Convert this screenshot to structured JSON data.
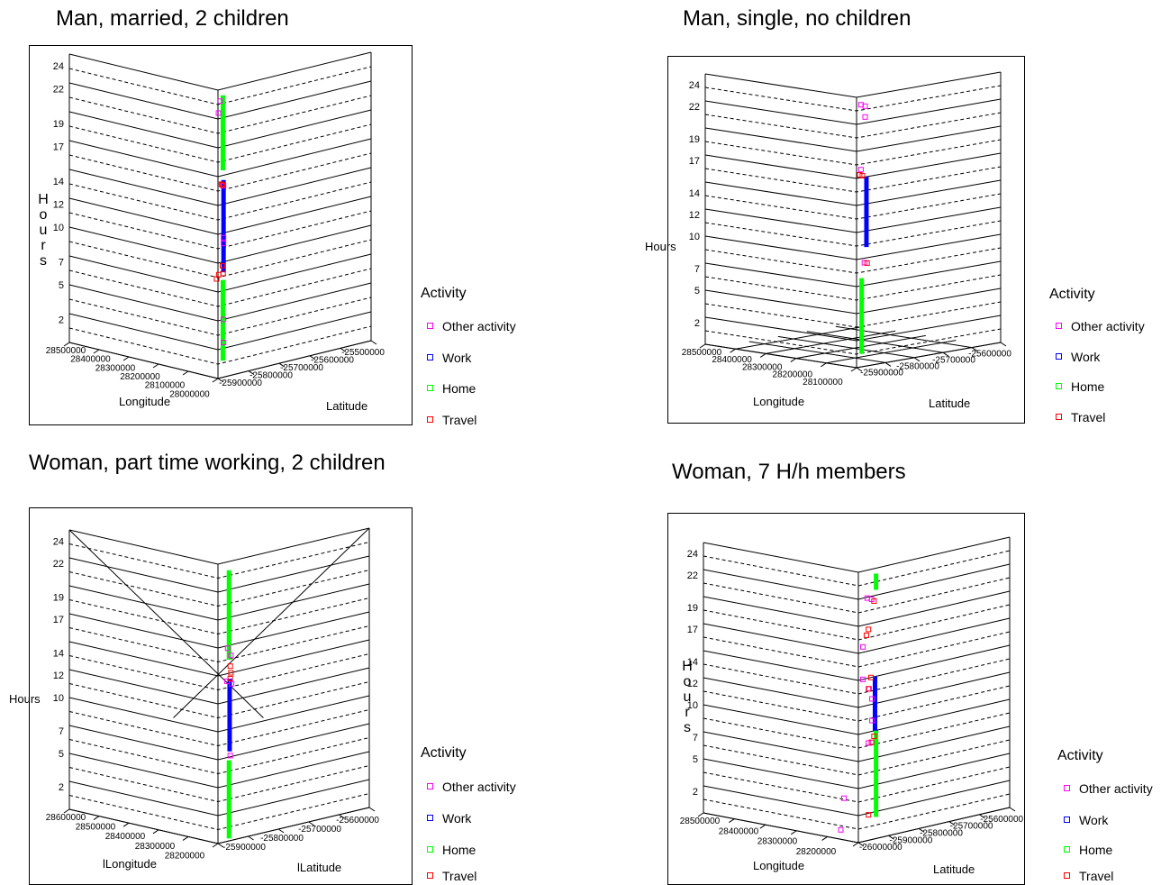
{
  "legend": {
    "title": "Activity",
    "items": [
      {
        "label": "Other activity",
        "color": "#ff00ff"
      },
      {
        "label": "Work",
        "color": "#0000ff"
      },
      {
        "label": "Home",
        "color": "#00ff00"
      },
      {
        "label": "Travel",
        "color": "#ff0000"
      }
    ]
  },
  "chart_data": [
    {
      "type": "scatter",
      "title": "Man, married, 2 children",
      "zlabel": "Hours",
      "zlabel_vertical": true,
      "xlabel": "Longitude",
      "ylabel": "Latitude",
      "z_ticks": [
        "24",
        "22",
        "19",
        "17",
        "14",
        "12",
        "10",
        "7",
        "5",
        "2"
      ],
      "x_ticks": [
        "28500000",
        "28400000",
        "28300000",
        "28200000",
        "28100000",
        "28000000"
      ],
      "y_ticks": [
        "-25900000",
        "-25800000",
        "-25700000",
        "-25600000",
        "-25500000"
      ],
      "series": [
        {
          "activity": "Home",
          "points": [
            [
              28100000,
              -25800000,
              17.5
            ],
            [
              28100000,
              -25800000,
              24
            ],
            [
              28100000,
              -25800000,
              1
            ],
            [
              28100000,
              -25800000,
              8
            ]
          ]
        },
        {
          "activity": "Work",
          "points": [
            [
              28020000,
              -25650000,
              9
            ],
            [
              28020000,
              -25650000,
              17
            ]
          ]
        },
        {
          "activity": "Other activity",
          "points": [
            [
              28020000,
              -25650000,
              12
            ],
            [
              28020000,
              -25650000,
              11.5
            ],
            [
              28020000,
              -25650000,
              16.5
            ],
            [
              27990000,
              -25510000,
              23
            ],
            [
              27985000,
              -25540000,
              24
            ],
            [
              28000000,
              -25610000,
              3
            ],
            [
              28000000,
              -25610000,
              5
            ]
          ]
        },
        {
          "activity": "Travel",
          "points": [
            [
              28060000,
              -25690000,
              16.5
            ],
            [
              28040000,
              -25670000,
              16.5
            ],
            [
              28150000,
              -25780000,
              8
            ],
            [
              28110000,
              -25740000,
              8.5
            ],
            [
              28040000,
              -25670000,
              9.5
            ],
            [
              27960000,
              -25600000,
              9
            ]
          ]
        }
      ]
    },
    {
      "type": "scatter",
      "title": "Man, single, no children",
      "zlabel": "Hours",
      "zlabel_vertical": false,
      "xlabel": "Longitude",
      "ylabel": "Latitude",
      "z_ticks": [
        "24",
        "22",
        "19",
        "17",
        "14",
        "12",
        "10",
        "7",
        "5",
        "2"
      ],
      "x_ticks": [
        "28500000",
        "28400000",
        "28300000",
        "28200000",
        "28100000"
      ],
      "y_ticks": [
        "-25900000",
        "-25800000",
        "-25700000",
        "-25600000"
      ],
      "series": [
        {
          "activity": "Home",
          "points": [
            [
              28150000,
              -25790000,
              1
            ],
            [
              28150000,
              -25790000,
              8
            ]
          ]
        },
        {
          "activity": "Work",
          "points": [
            [
              28080000,
              -25760000,
              11
            ],
            [
              28080000,
              -25760000,
              17.5
            ]
          ]
        },
        {
          "activity": "Other activity",
          "points": [
            [
              28160000,
              -25800000,
              18
            ],
            [
              28160000,
              -25800000,
              24
            ],
            [
              28110000,
              -25760000,
              23
            ],
            [
              28110000,
              -25760000,
              24
            ],
            [
              28120000,
              -25770000,
              9.5
            ]
          ]
        },
        {
          "activity": "Travel",
          "points": [
            [
              28170000,
              -25800000,
              17.5
            ],
            [
              28140000,
              -25780000,
              17.5
            ],
            [
              28100000,
              -25770000,
              9.5
            ]
          ]
        }
      ]
    },
    {
      "type": "scatter",
      "title": "Woman, part time working, 2 children",
      "zlabel": "Hours",
      "zlabel_vertical": false,
      "xlabel": "lLongitude",
      "ylabel": "lLatitude",
      "z_ticks": [
        "24",
        "22",
        "19",
        "17",
        "14",
        "12",
        "10",
        "7",
        "5",
        "2"
      ],
      "x_ticks": [
        "28600000",
        "28500000",
        "28400000",
        "28300000",
        "28200000"
      ],
      "y_ticks": [
        "-25900000",
        "-25800000",
        "-25700000",
        "-25600000"
      ],
      "series": [
        {
          "activity": "Home",
          "points": [
            [
              28240000,
              -25850000,
              0
            ],
            [
              28240000,
              -25850000,
              7
            ],
            [
              28240000,
              -25850000,
              16
            ],
            [
              28240000,
              -25850000,
              24
            ]
          ]
        },
        {
          "activity": "Work",
          "points": [
            [
              28150000,
              -25780000,
              8
            ],
            [
              28150000,
              -25780000,
              14.5
            ]
          ]
        },
        {
          "activity": "Other activity",
          "points": [
            [
              28250000,
              -25850000,
              17
            ],
            [
              28210000,
              -25820000,
              16.5
            ],
            [
              28200000,
              -25810000,
              14
            ],
            [
              28260000,
              -25860000,
              14
            ],
            [
              28220000,
              -25830000,
              7.5
            ]
          ]
        },
        {
          "activity": "Travel",
          "points": [
            [
              28220000,
              -25830000,
              15.5
            ],
            [
              28190000,
              -25800000,
              15
            ],
            [
              28170000,
              -25790000,
              14.5
            ]
          ]
        }
      ]
    },
    {
      "type": "scatter",
      "title": "Woman, 7 H/h members",
      "zlabel": "Hours",
      "zlabel_vertical": true,
      "xlabel": "Longitude",
      "ylabel": "Latitude",
      "z_ticks": [
        "24",
        "22",
        "19",
        "17",
        "14",
        "12",
        "10",
        "7",
        "5",
        "2"
      ],
      "x_ticks": [
        "28500000",
        "28400000",
        "28300000",
        "28200000"
      ],
      "y_ticks": [
        "-26000000",
        "-25900000",
        "-25800000",
        "-25700000",
        "-25600000"
      ],
      "series": [
        {
          "activity": "Home",
          "points": [
            [
              28200000,
              -25950000,
              2
            ],
            [
              28200000,
              -25950000,
              10
            ],
            [
              28200000,
              -25950000,
              24.5
            ],
            [
              28200000,
              -25950000,
              23
            ]
          ]
        },
        {
          "activity": "Work",
          "points": [
            [
              28170000,
              -25930000,
              15
            ],
            [
              28170000,
              -25930000,
              10
            ]
          ]
        },
        {
          "activity": "Other activity",
          "points": [
            [
              28260000,
              -25990000,
              22
            ],
            [
              28230000,
              -25970000,
              22
            ],
            [
              28120000,
              -25870000,
              11
            ],
            [
              28120000,
              -25870000,
              13
            ],
            [
              28050000,
              -25800000,
              14
            ],
            [
              28050000,
              -25800000,
              9
            ],
            [
              27950000,
              -25690000,
              18
            ],
            [
              27950000,
              -25690000,
              15
            ],
            [
              28400000,
              -26030000,
              3
            ],
            [
              28420000,
              -26040000,
              0
            ]
          ]
        },
        {
          "activity": "Travel",
          "points": [
            [
              28150000,
              -25910000,
              22
            ],
            [
              28050000,
              -25800000,
              19.5
            ],
            [
              28000000,
              -25760000,
              19
            ],
            [
              28100000,
              -25850000,
              15
            ],
            [
              28050000,
              -25810000,
              14
            ],
            [
              28150000,
              -25910000,
              9.5
            ],
            [
              28100000,
              -25860000,
              9
            ],
            [
              28250000,
              -25980000,
              2
            ]
          ]
        }
      ]
    }
  ]
}
